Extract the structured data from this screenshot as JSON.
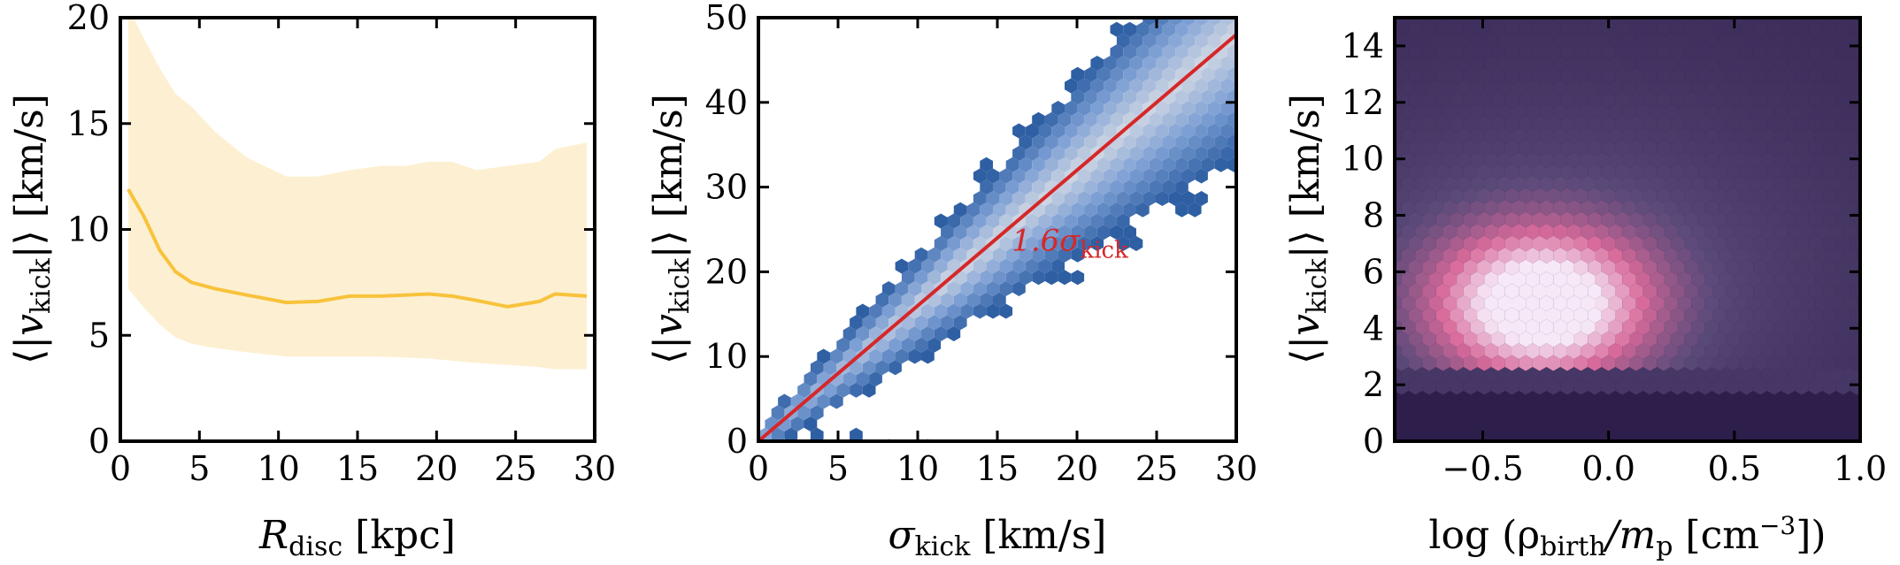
{
  "chart_data": [
    {
      "type": "line",
      "xlabel": "R_disc [kpc]",
      "ylabel": "⟨|v_kick|⟩ [km/s]",
      "xlim": [
        0,
        30
      ],
      "ylim": [
        0,
        20
      ],
      "xticks": [
        "0",
        "5",
        "10",
        "15",
        "20",
        "25",
        "30"
      ],
      "yticks": [
        "0",
        "5",
        "10",
        "15",
        "20"
      ],
      "line_color": "#f8c23c",
      "band_color": "#fdf0d2",
      "x": [
        0.5,
        1.5,
        2.5,
        3.5,
        4.5,
        6,
        8,
        10.5,
        12.5,
        14.5,
        16.5,
        18,
        19.5,
        21,
        22.5,
        24.5,
        26.5,
        27.5,
        29.5
      ],
      "median": [
        11.9,
        10.6,
        9.0,
        8.0,
        7.5,
        7.2,
        6.9,
        6.55,
        6.6,
        6.85,
        6.85,
        6.9,
        6.95,
        6.85,
        6.65,
        6.35,
        6.6,
        6.95,
        6.85
      ],
      "upper": [
        20.5,
        19.0,
        17.6,
        16.4,
        15.8,
        14.6,
        13.4,
        12.5,
        12.5,
        12.8,
        13.0,
        13.0,
        13.2,
        13.2,
        12.8,
        13.0,
        13.2,
        13.8,
        14.1
      ],
      "lower": [
        7.2,
        6.3,
        5.5,
        4.9,
        4.6,
        4.4,
        4.2,
        4.0,
        4.0,
        4.0,
        4.0,
        3.95,
        3.9,
        3.8,
        3.7,
        3.6,
        3.5,
        3.4,
        3.4
      ]
    },
    {
      "type": "scatter",
      "subtype": "hexbin",
      "xlabel": "σ_kick [km/s]",
      "ylabel": "⟨|v_kick|⟩ [km/s]",
      "xlim": [
        0,
        30
      ],
      "ylim": [
        0,
        50
      ],
      "xticks": [
        "0",
        "5",
        "10",
        "15",
        "20",
        "25",
        "30"
      ],
      "yticks": [
        "0",
        "10",
        "20",
        "30",
        "40",
        "50"
      ],
      "fit_line": {
        "slope": 1.6,
        "intercept": 0,
        "color": "#d62728"
      },
      "annotation": {
        "text": "1.6σ_kick",
        "x": 15.9,
        "y": 22.5
      },
      "colormap": [
        "#2e5fa3",
        "#7c9fd4",
        "#cfd6e3"
      ]
    },
    {
      "type": "heatmap",
      "subtype": "hexbin",
      "xlabel": "log (ρ_birth/m_p [cm^-3])",
      "ylabel": "⟨|v_kick|⟩ [km/s]",
      "xlim": [
        -0.85,
        1.0
      ],
      "ylim": [
        0,
        15
      ],
      "xticks": [
        "−0.5",
        "0.0",
        "0.5",
        "1.0"
      ],
      "yticks": [
        "0",
        "2",
        "4",
        "6",
        "8",
        "10",
        "12",
        "14"
      ],
      "colormap": [
        "#2b1b48",
        "#5a4a7a",
        "#d86a9a",
        "#f6e8f6"
      ],
      "peak": {
        "x": -0.27,
        "y": 4.8
      }
    }
  ],
  "labels": {
    "p1": {
      "y_pre": "⟨|",
      "y_v": "v",
      "y_sub": "kick",
      "y_post": "|⟩ [km/s]",
      "x_main": "R",
      "x_sub": "disc",
      "x_post": " [kpc]"
    },
    "p2": {
      "y_pre": "⟨|",
      "y_v": "v",
      "y_sub": "kick",
      "y_post": "|⟩ [km/s]",
      "x_main": "σ",
      "x_sub": "kick",
      "x_post": " [km/s]",
      "annot_main": "1.6σ",
      "annot_sub": "kick"
    },
    "p3": {
      "y_pre": "⟨|",
      "y_v": "v",
      "y_sub": "kick",
      "y_post": "|⟩ [km/s]",
      "x_pre": "log (ρ",
      "x_sub1": "birth",
      "x_mid": "/m",
      "x_sub2": "p",
      "x_unit": " [cm",
      "x_sup": "−3",
      "x_post": "])"
    }
  }
}
